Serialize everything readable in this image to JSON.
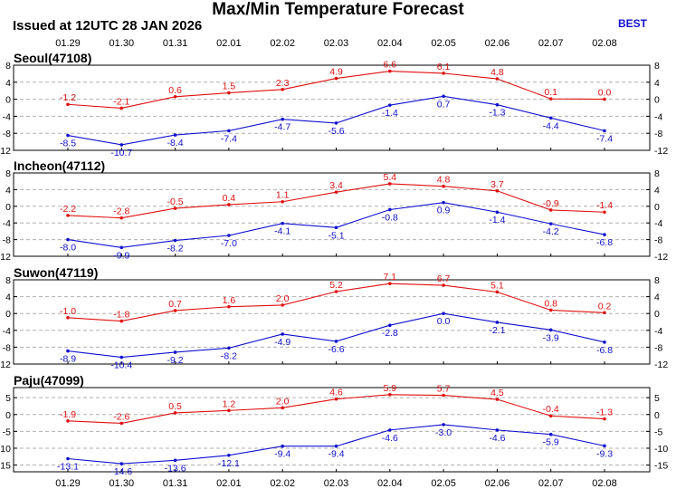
{
  "header": {
    "title": "Max/Min Temperature Forecast",
    "issued": "Issued at 12UTC 28 JAN 2026",
    "model": "BEST"
  },
  "colors": {
    "max": "#e01010",
    "min": "#1010d0",
    "grid": "#b0b0b0"
  },
  "chart_data": [
    {
      "type": "line",
      "title": "Seoul(47108)",
      "categories": [
        "01.29",
        "01.30",
        "01.31",
        "02.01",
        "02.02",
        "02.03",
        "02.04",
        "02.05",
        "02.06",
        "02.07",
        "02.08"
      ],
      "ylim": [
        -12,
        8
      ],
      "yticks": [
        8,
        4,
        0,
        -4,
        -8,
        -12
      ],
      "grid": true,
      "series": [
        {
          "color": "#e01010",
          "values": [
            -1.2,
            -2.1,
            0.6,
            1.5,
            2.3,
            4.9,
            6.6,
            6.1,
            4.8,
            0.1,
            0.0
          ]
        },
        {
          "color": "#1010d0",
          "values": [
            -8.5,
            -10.7,
            -8.4,
            -7.4,
            -4.7,
            -5.6,
            -1.4,
            0.7,
            -1.3,
            -4.4,
            -7.4
          ]
        }
      ]
    },
    {
      "type": "line",
      "title": "Incheon(47112)",
      "categories": [
        "01.29",
        "01.30",
        "01.31",
        "02.01",
        "02.02",
        "02.03",
        "02.04",
        "02.05",
        "02.06",
        "02.07",
        "02.08"
      ],
      "ylim": [
        -12,
        8
      ],
      "yticks": [
        8,
        4,
        0,
        -4,
        -8,
        -12
      ],
      "grid": true,
      "series": [
        {
          "color": "#e01010",
          "values": [
            -2.2,
            -2.8,
            -0.5,
            0.4,
            1.1,
            3.4,
            5.4,
            4.8,
            3.7,
            -0.9,
            -1.4
          ]
        },
        {
          "color": "#1010d0",
          "values": [
            -8.0,
            -9.9,
            -8.2,
            -7.0,
            -4.1,
            -5.1,
            -0.8,
            0.9,
            -1.4,
            -4.2,
            -6.8
          ]
        }
      ]
    },
    {
      "type": "line",
      "title": "Suwon(47119)",
      "categories": [
        "01.29",
        "01.30",
        "01.31",
        "02.01",
        "02.02",
        "02.03",
        "02.04",
        "02.05",
        "02.06",
        "02.07",
        "02.08"
      ],
      "ylim": [
        -12,
        8
      ],
      "yticks": [
        8,
        4,
        0,
        -4,
        -8,
        -12
      ],
      "grid": true,
      "series": [
        {
          "color": "#e01010",
          "values": [
            -1.0,
            -1.8,
            0.7,
            1.6,
            2.0,
            5.2,
            7.1,
            6.7,
            5.1,
            0.8,
            0.2
          ]
        },
        {
          "color": "#1010d0",
          "values": [
            -8.9,
            -10.4,
            -9.2,
            -8.2,
            -4.9,
            -6.6,
            -2.8,
            0.0,
            -2.1,
            -3.9,
            -6.8
          ]
        }
      ]
    },
    {
      "type": "line",
      "title": "Paju(47099)",
      "categories": [
        "01.29",
        "01.30",
        "01.31",
        "02.01",
        "02.02",
        "02.03",
        "02.04",
        "02.05",
        "02.06",
        "02.07",
        "02.08"
      ],
      "ylim": [
        -17,
        8
      ],
      "yticks": [
        5,
        0,
        -5,
        -10,
        -15
      ],
      "grid": true,
      "series": [
        {
          "color": "#e01010",
          "values": [
            -1.9,
            -2.6,
            0.5,
            1.2,
            2.0,
            4.6,
            5.9,
            5.7,
            4.5,
            -0.4,
            -1.3
          ]
        },
        {
          "color": "#1010d0",
          "values": [
            -13.1,
            -14.6,
            -13.6,
            -12.1,
            -9.4,
            -9.4,
            -4.6,
            -3.0,
            -4.6,
            -5.9,
            -9.3
          ]
        }
      ]
    }
  ]
}
